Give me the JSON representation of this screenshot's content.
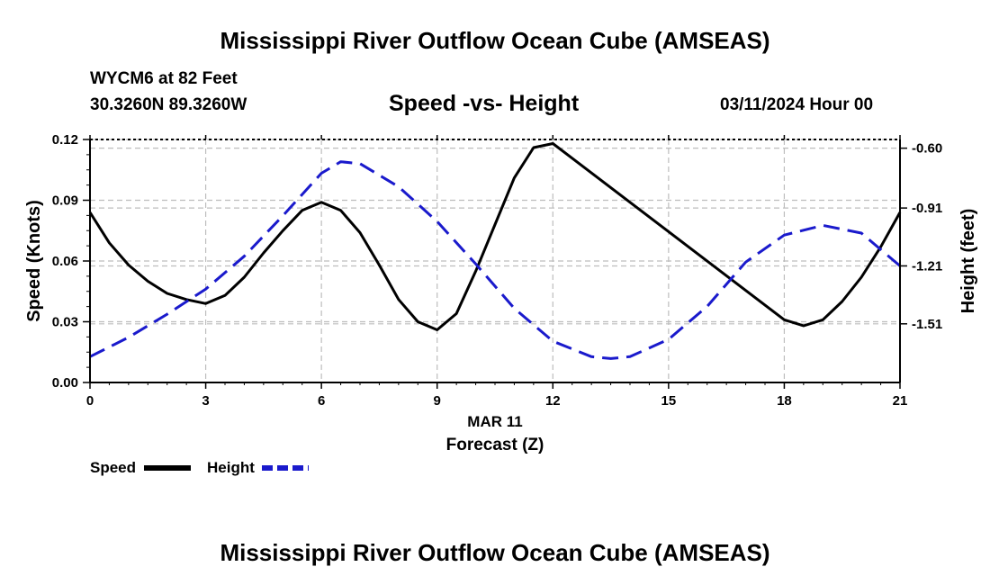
{
  "header": {
    "title": "Mississippi River Outflow Ocean Cube (AMSEAS)",
    "station": "WYCM6 at 82 Feet",
    "coords": "30.3260N  89.3260W",
    "subtitle": "Speed -vs- Height",
    "datetime": "03/11/2024 Hour 00"
  },
  "footer": {
    "title": "Mississippi River Outflow Ocean Cube (AMSEAS)"
  },
  "chart_data": {
    "type": "line",
    "xlabel": "Forecast (Z)",
    "date_label": "MAR 11",
    "ylabel_left": "Speed (Knots)",
    "ylabel_right": "Height (feet)",
    "xlim": [
      0,
      21
    ],
    "ylim_left": [
      0,
      0.12
    ],
    "ylim_right": [
      -1.814,
      -0.555
    ],
    "x_ticks": [
      0,
      3,
      6,
      9,
      12,
      15,
      18,
      21
    ],
    "x_tick_labels": [
      "0",
      "3",
      "6",
      "9",
      "12",
      "15",
      "18",
      "21"
    ],
    "y_left_ticks": [
      0,
      0.03,
      0.06,
      0.09,
      0.12
    ],
    "y_left_tick_labels": [
      "0.00",
      "0.03",
      "0.06",
      "0.09",
      "0.12"
    ],
    "y_right_ticks": [
      -0.6,
      -0.91,
      -1.21,
      -1.51
    ],
    "y_right_tick_labels": [
      "-0.60",
      "-0.91",
      "-1.21",
      "-1.51"
    ],
    "grid": true,
    "legend": [
      {
        "name": "Speed",
        "color": "#000000",
        "style": "solid"
      },
      {
        "name": "Height",
        "color": "#1a1acc",
        "style": "dashed"
      }
    ],
    "series": [
      {
        "name": "Speed",
        "axis": "left",
        "color": "#000000",
        "style": "solid",
        "x": [
          0,
          0.5,
          1,
          1.5,
          2,
          2.5,
          3,
          3.5,
          4,
          4.5,
          5,
          5.5,
          6,
          6.5,
          7,
          7.5,
          8,
          8.5,
          9,
          9.5,
          10,
          10.5,
          11,
          11.5,
          12,
          18,
          18.5,
          19,
          19.5,
          20,
          20.5,
          21
        ],
        "values": [
          0.084,
          0.069,
          0.058,
          0.05,
          0.044,
          0.041,
          0.039,
          0.043,
          0.052,
          0.064,
          0.075,
          0.085,
          0.089,
          0.085,
          0.074,
          0.058,
          0.041,
          0.03,
          0.026,
          0.034,
          0.055,
          0.078,
          0.101,
          0.116,
          0.118,
          0.031,
          0.028,
          0.031,
          0.04,
          0.052,
          0.067,
          0.084
        ]
      },
      {
        "name": "Height",
        "axis": "right",
        "color": "#1a1acc",
        "style": "dashed",
        "x": [
          0,
          1,
          2,
          3,
          4,
          5,
          6,
          6.5,
          7,
          8,
          9,
          10,
          11,
          12,
          13,
          13.5,
          14,
          15,
          16,
          17,
          18,
          19,
          20,
          21
        ],
        "values": [
          -1.68,
          -1.58,
          -1.46,
          -1.33,
          -1.16,
          -0.95,
          -0.73,
          -0.67,
          -0.68,
          -0.8,
          -0.98,
          -1.2,
          -1.43,
          -1.6,
          -1.68,
          -1.69,
          -1.68,
          -1.59,
          -1.42,
          -1.19,
          -1.05,
          -1.0,
          -1.04,
          -1.21
        ]
      }
    ]
  }
}
